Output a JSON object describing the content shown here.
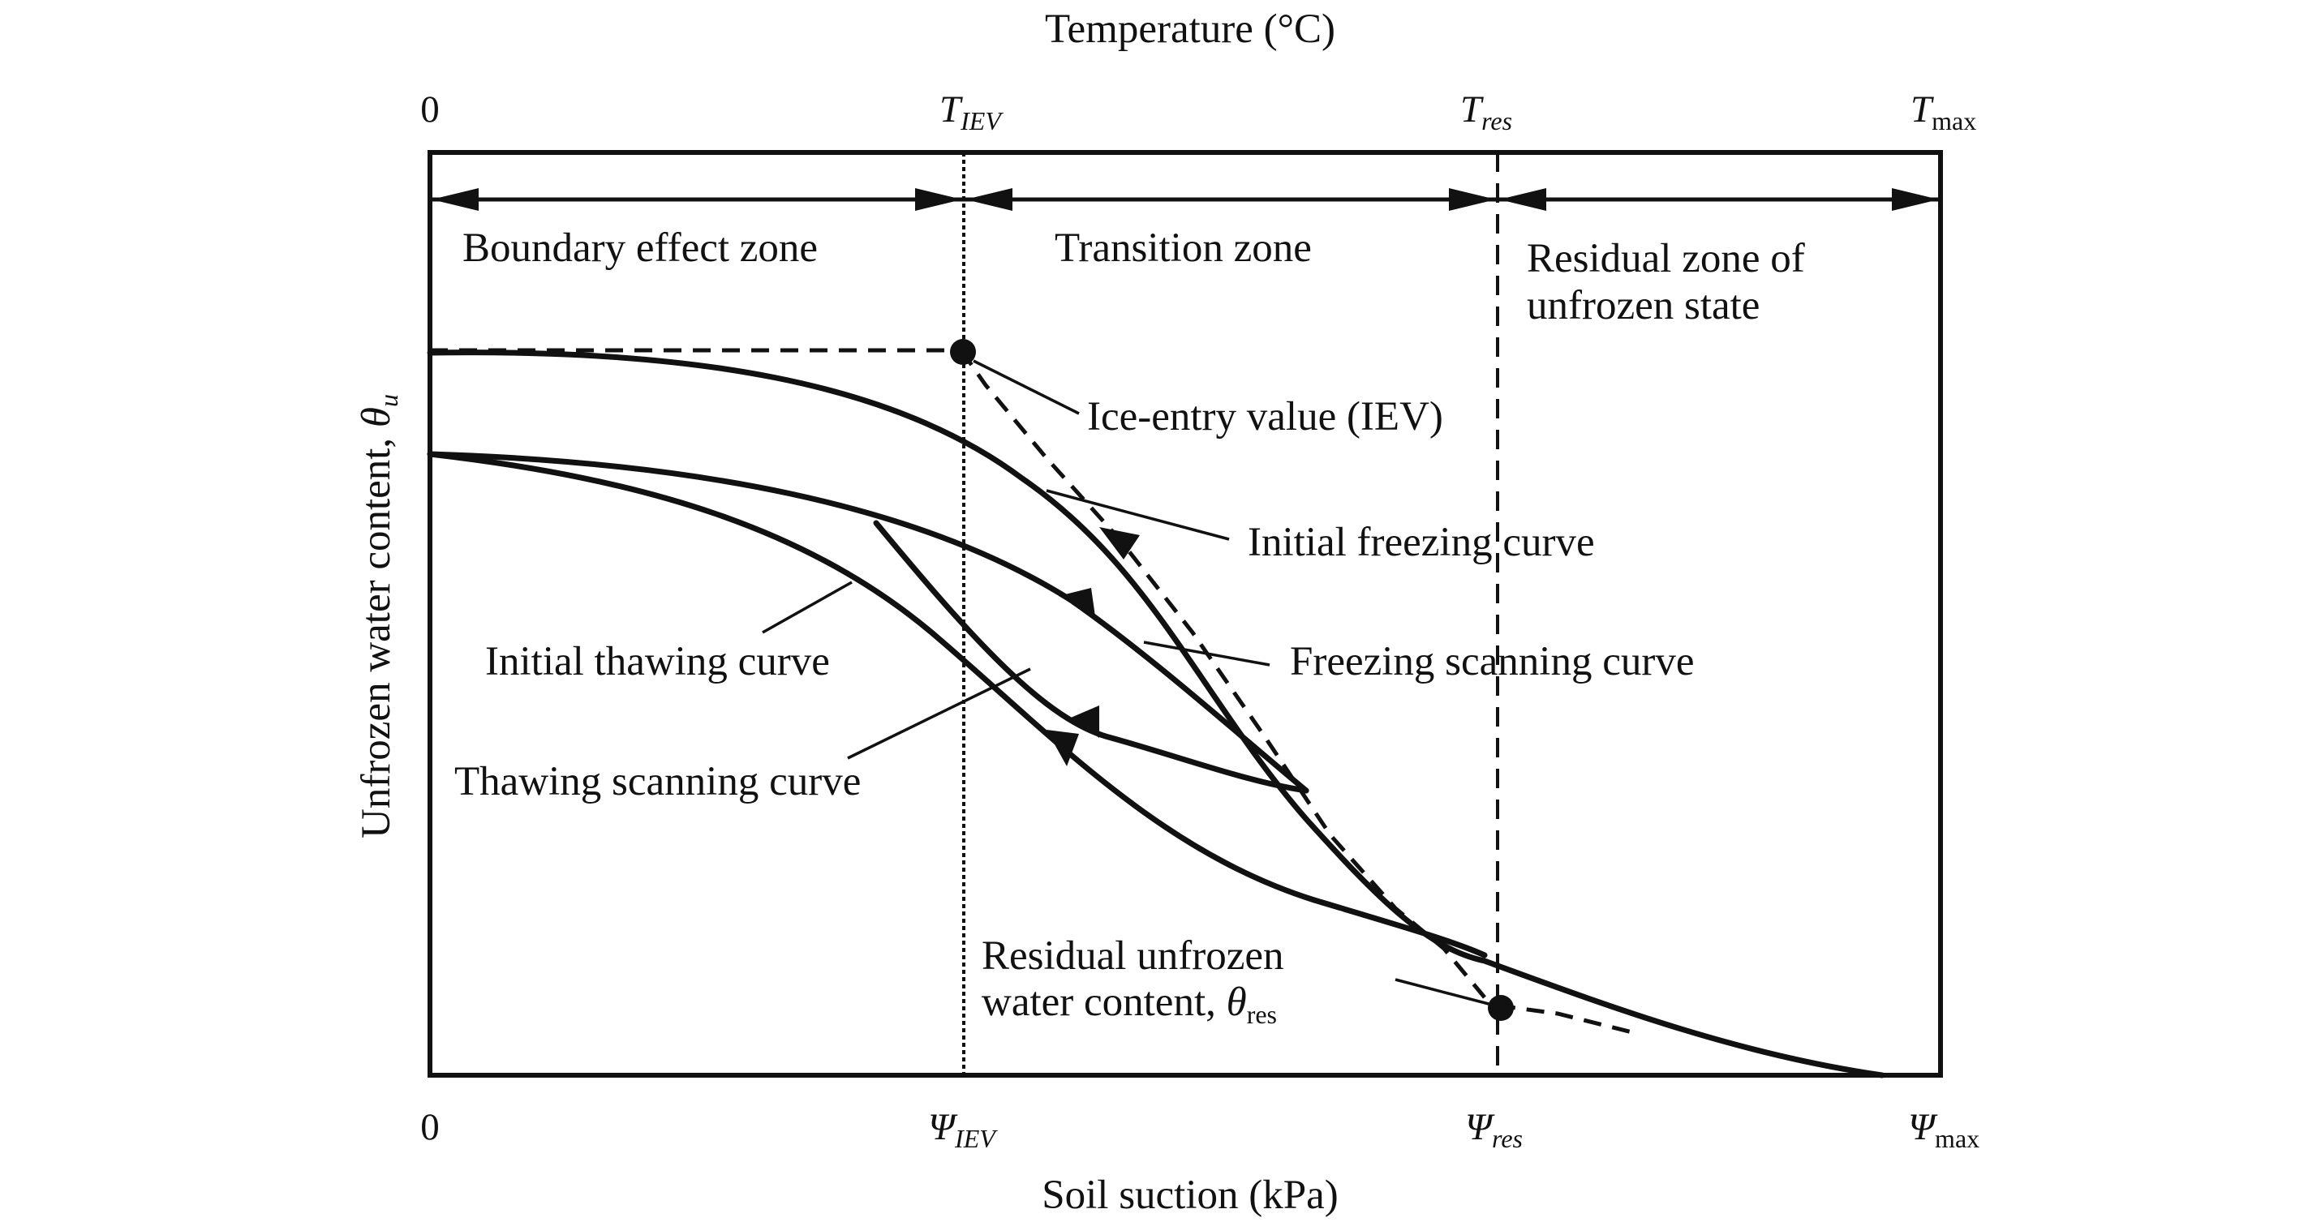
{
  "axes": {
    "top_title": "Temperature (°C)",
    "bottom_title": "Soil suction (kPa)",
    "left_title": "Unfrozen water content, ",
    "left_title_symbol": "θ",
    "left_title_sub": "u",
    "top_ticks": [
      {
        "main": "0",
        "sub": ""
      },
      {
        "main": "T",
        "sub": "IEV"
      },
      {
        "main": "T",
        "sub": "res"
      },
      {
        "main": "T",
        "sub": "max"
      }
    ],
    "bottom_ticks": [
      {
        "main": "0",
        "sub": ""
      },
      {
        "main": "Ψ",
        "sub": "IEV"
      },
      {
        "main": "Ψ",
        "sub": "res"
      },
      {
        "main": "Ψ",
        "sub": "max"
      }
    ]
  },
  "zones": {
    "boundary": "Boundary effect zone",
    "transition": "Transition zone",
    "residual_line1": "Residual zone of",
    "residual_line2": "unfrozen state"
  },
  "labels": {
    "iev": "Ice-entry value (IEV)",
    "initial_freezing": "Initial freezing curve",
    "freezing_scanning": "Freezing scanning curve",
    "initial_thawing": "Initial thawing curve",
    "thawing_scanning": "Thawing scanning curve",
    "residual_line1": "Residual unfrozen",
    "residual_line2": "water content, ",
    "residual_symbol": "θ",
    "residual_sub": "res"
  }
}
